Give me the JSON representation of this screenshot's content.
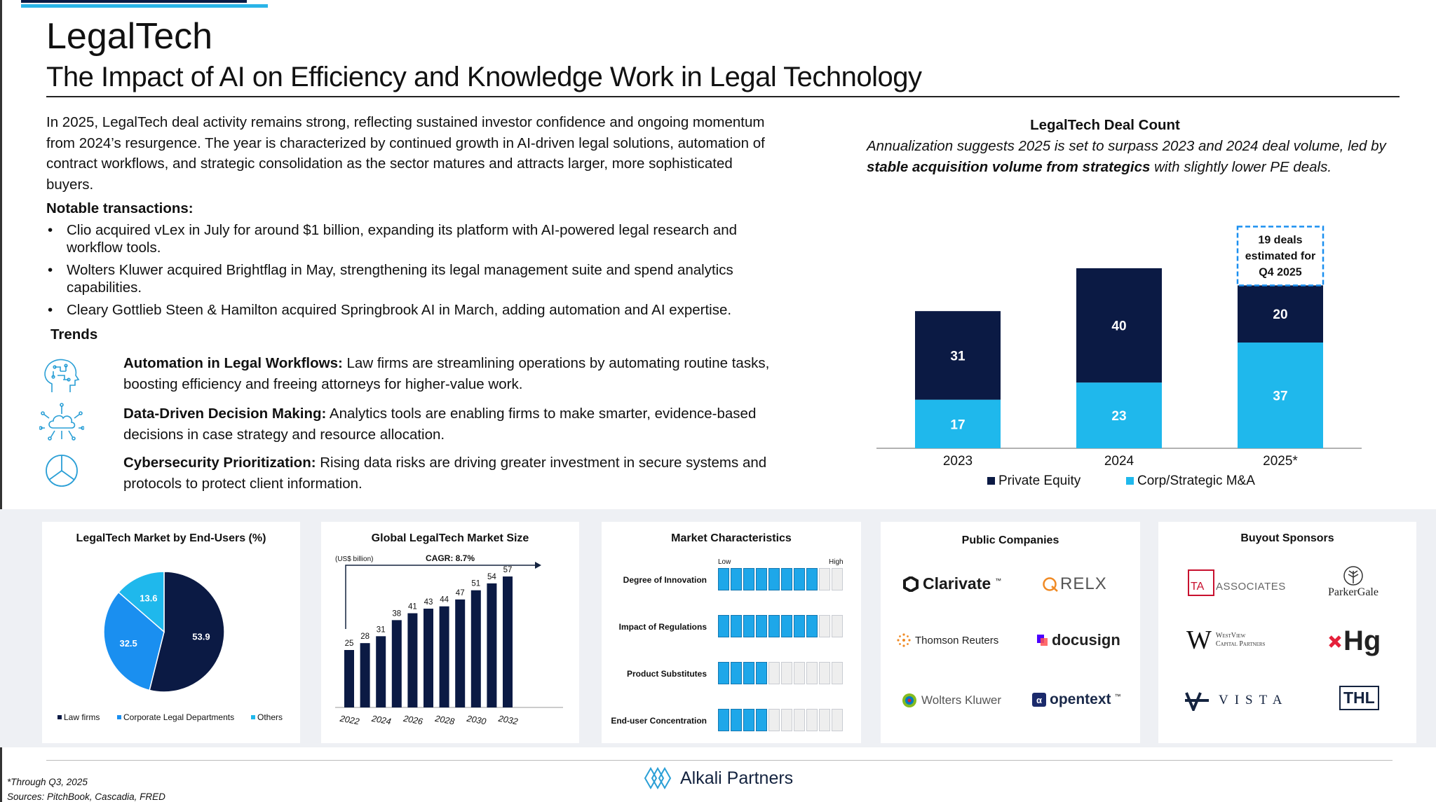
{
  "header": {
    "title": "LegalTech",
    "subtitle": "The Impact of AI on Efficiency and Knowledge Work in Legal Technology"
  },
  "intro": "In 2025, LegalTech deal activity remains strong, reflecting sustained investor confidence and ongoing momentum from 2024’s resurgence. The year is characterized by continued growth in AI-driven legal solutions, automation of contract workflows, and strategic consolidation as the sector matures and attracts larger, more sophisticated buyers.",
  "notable": {
    "heading": "Notable transactions:",
    "items": [
      "Clio acquired vLex in July for around $1 billion, expanding its platform with AI-powered legal research and workflow tools.",
      "Wolters Kluwer acquired Brightflag in May, strengthening its legal management suite and spend analytics capabilities.",
      "Cleary Gottlieb Steen & Hamilton acquired Springbrook AI in March, adding automation and AI expertise."
    ]
  },
  "trends": {
    "heading": "Trends",
    "items": [
      {
        "icon": "brain-circuit-icon",
        "title": "Automation in Legal Workflows:",
        "text": " Law firms are streamlining operations by automating routine tasks, boosting efficiency and freeing attorneys for higher-value work."
      },
      {
        "icon": "cloud-network-icon",
        "title": "Data-Driven Decision Making:",
        "text": " Analytics tools are enabling firms to make smarter, evidence-based decisions in case strategy and resource allocation."
      },
      {
        "icon": "pie-chart-icon",
        "title": "Cybersecurity Prioritization:",
        "text": " Rising data risks are driving greater investment in secure systems and protocols to protect client information."
      }
    ]
  },
  "deal_count": {
    "title": "LegalTech Deal Count",
    "subtitle_pre": "Annualization suggests 2025 is set to surpass 2023 and 2024 deal volume, led by ",
    "subtitle_bold": "stable acquisition volume from strategics",
    "subtitle_post": " with slightly lower PE deals.",
    "estimate_box": [
      "19 deals",
      "estimated for",
      "Q4 2025"
    ]
  },
  "market_end_users": {
    "title": "LegalTech Market by End-Users (%)"
  },
  "market_size": {
    "title": "Global LegalTech Market Size",
    "unit": "(US$ billion)",
    "cagr": "CAGR: 8.7%"
  },
  "market_characteristics": {
    "title": "Market Characteristics",
    "low": "Low",
    "high": "High",
    "items": [
      {
        "label": "Degree of Innovation",
        "level": 8,
        "max": 10
      },
      {
        "label": "Impact of Regulations",
        "level": 8,
        "max": 10
      },
      {
        "label": "Product Substitutes",
        "level": 4,
        "max": 10
      },
      {
        "label": "End-user Concentration",
        "level": 4,
        "max": 10
      }
    ]
  },
  "public_companies": {
    "title": "Public Companies",
    "logos": [
      "Clarivate",
      "RELX",
      "Thomson Reuters",
      "docusign",
      "Wolters Kluwer",
      "opentext"
    ],
    "tm": "™"
  },
  "buyout_sponsors": {
    "title": "Buyout Sponsors",
    "logos": {
      "ta_a": "TA",
      "ta_b": "ASSOCIATES",
      "parkergale": "ParkerGale",
      "westview_w": "W",
      "westview_1": "WestView",
      "westview_2": "Capital Partners",
      "hg": "Hg",
      "vista": "VISTA",
      "thl": "THL"
    }
  },
  "footer": {
    "note1": "*Through Q3, 2025",
    "note2": "Sources: PitchBook, Cascadia, FRED",
    "brand": "Alkali Partners"
  },
  "colors": {
    "navy": "#0b1a44",
    "cyan": "#1fb8ec",
    "blue": "#1a8ff0"
  },
  "chart_data": [
    {
      "type": "bar",
      "stacked": true,
      "categories": [
        "2023",
        "2024",
        "2025*"
      ],
      "series": [
        {
          "name": "Private Equity",
          "values": [
            31,
            40,
            20
          ],
          "color": "#0b1a44"
        },
        {
          "name": "Corp/Strategic M&A",
          "values": [
            17,
            23,
            37
          ],
          "color": "#1fb8ec"
        }
      ],
      "legend": "bottom",
      "ylim": [
        0,
        70
      ]
    },
    {
      "type": "pie",
      "categories": [
        "Law firms",
        "Corporate Legal Departments",
        "Others"
      ],
      "values": [
        53.9,
        32.5,
        13.6
      ],
      "colors": [
        "#0b1a44",
        "#1a8ff0",
        "#1fb8ec"
      ],
      "legend": "bottom"
    },
    {
      "type": "bar",
      "categories": [
        "2022",
        "2023",
        "2024",
        "2025",
        "2026",
        "2027",
        "2028",
        "2029",
        "2030",
        "2031",
        "2032"
      ],
      "tick_labels": [
        "2022",
        "2024",
        "2026",
        "2028",
        "2030",
        "2032"
      ],
      "values": [
        25,
        28,
        31,
        38,
        41,
        43,
        44,
        47,
        51,
        54,
        57
      ],
      "ylim": [
        0,
        62
      ]
    }
  ]
}
